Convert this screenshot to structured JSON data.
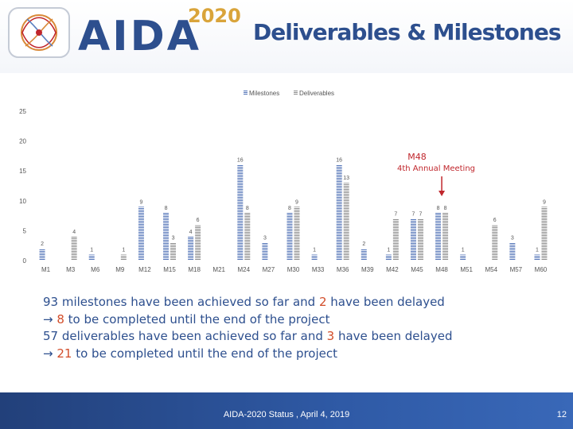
{
  "header": {
    "logo_name": "AIDA",
    "logo_year": "2020",
    "title": "Deliverables & Milestones"
  },
  "chart_data": {
    "type": "bar",
    "title": "",
    "xlabel": "",
    "ylabel": "",
    "ylim": [
      0,
      25
    ],
    "yticks": [
      0,
      5,
      10,
      15,
      20,
      25
    ],
    "categories": [
      "M1",
      "M3",
      "M6",
      "M9",
      "M12",
      "M15",
      "M18",
      "M21",
      "M24",
      "M27",
      "M30",
      "M33",
      "M36",
      "M39",
      "M42",
      "M45",
      "M48",
      "M51",
      "M54",
      "M57",
      "M60"
    ],
    "series": [
      {
        "name": "Milestones",
        "color": "#4f71b6",
        "values": [
          2,
          0,
          1,
          0,
          9,
          8,
          4,
          0,
          16,
          3,
          8,
          1,
          16,
          2,
          1,
          7,
          8,
          1,
          0,
          3,
          1
        ]
      },
      {
        "name": "Deliverables",
        "color": "#8a8a8a",
        "values": [
          0,
          4,
          0,
          1,
          0,
          3,
          6,
          0,
          8,
          0,
          9,
          0,
          13,
          0,
          7,
          7,
          8,
          0,
          6,
          0,
          9
        ]
      }
    ],
    "annotation": {
      "line1": "M48",
      "line2": "4th Annual Meeting",
      "target": "M48",
      "color": "#c0262c"
    }
  },
  "summary": {
    "row1_pre": "93 milestones have been achieved so far and ",
    "row1_num": "2",
    "row1_post": " have been delayed",
    "row2_arrow": "→",
    "row2_num": "8",
    "row2_post": " to be completed until the end of the project",
    "row3_pre": "57 deliverables have been achieved so far and ",
    "row3_num": "3",
    "row3_post": " have been delayed",
    "row4_arrow": "→",
    "row4_num": "21",
    "row4_post": " to be completed until the end of the project"
  },
  "footer": {
    "text": "AIDA-2020 Status , April 4, 2019",
    "page": "12"
  }
}
